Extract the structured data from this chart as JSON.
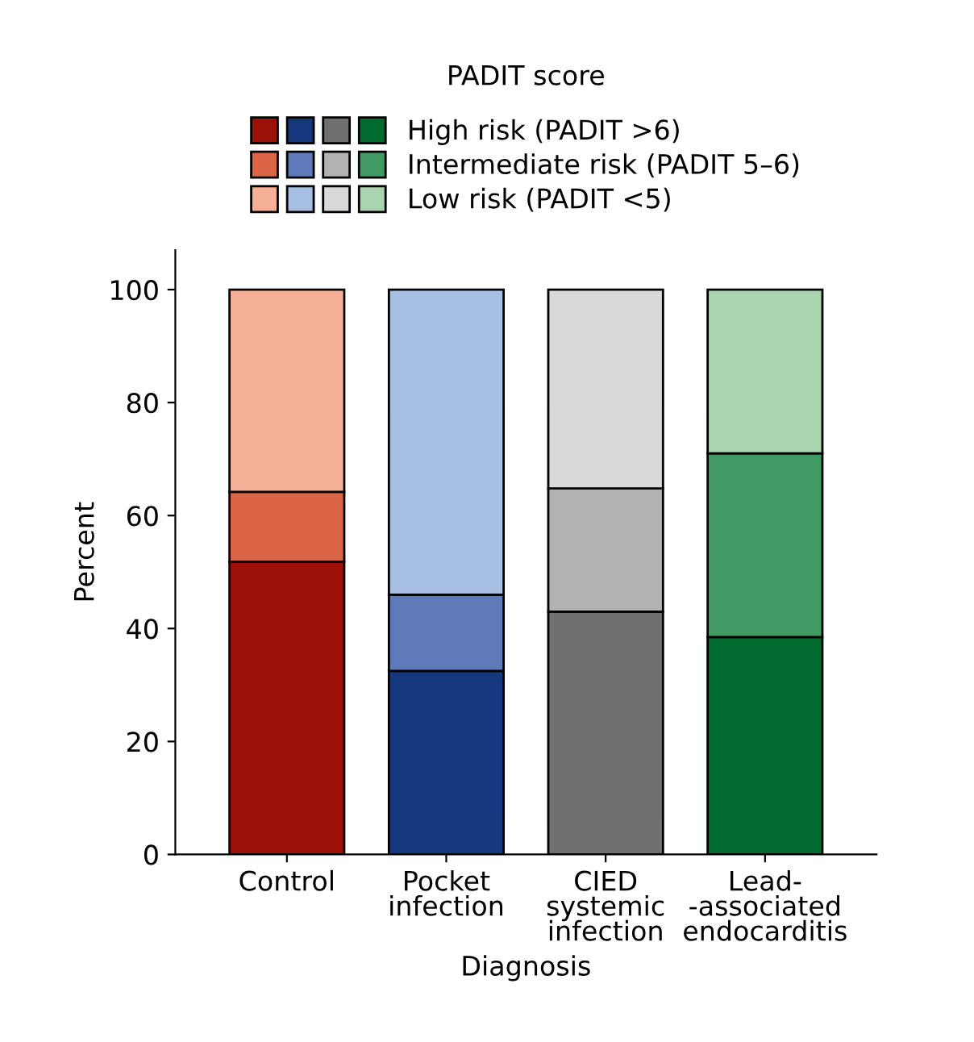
{
  "chart_data": {
    "type": "bar",
    "stacked": true,
    "legend_title": "PADIT score",
    "xlabel": "Diagnosis",
    "ylabel": "Percent",
    "categories": [
      "Control",
      "Pocket\ninfection",
      "CIED\nsystemic\ninfection",
      "Lead-\n-associated\nendocarditis"
    ],
    "series": [
      {
        "name": "High risk (PADIT >6)",
        "colors": [
          "#9b1108",
          "#14377e",
          "#707070",
          "#016a2e"
        ],
        "values": [
          51.8,
          32.5,
          43.0,
          38.5
        ]
      },
      {
        "name": "Intermediate risk (PADIT 5–6)",
        "colors": [
          "#dc6447",
          "#5e7aba",
          "#b2b2b2",
          "#419a63"
        ],
        "values": [
          12.4,
          13.5,
          21.8,
          32.5
        ]
      },
      {
        "name": "Low risk (PADIT <5)",
        "colors": [
          "#f6b097",
          "#a6bfe3",
          "#d9d9d9",
          "#a8d4af"
        ],
        "values": [
          35.8,
          54.0,
          35.2,
          29.0
        ]
      }
    ],
    "ylim": [
      0,
      107
    ],
    "yticks": [
      0,
      20,
      40,
      60,
      80,
      100
    ],
    "grid": false,
    "legend": "top"
  }
}
